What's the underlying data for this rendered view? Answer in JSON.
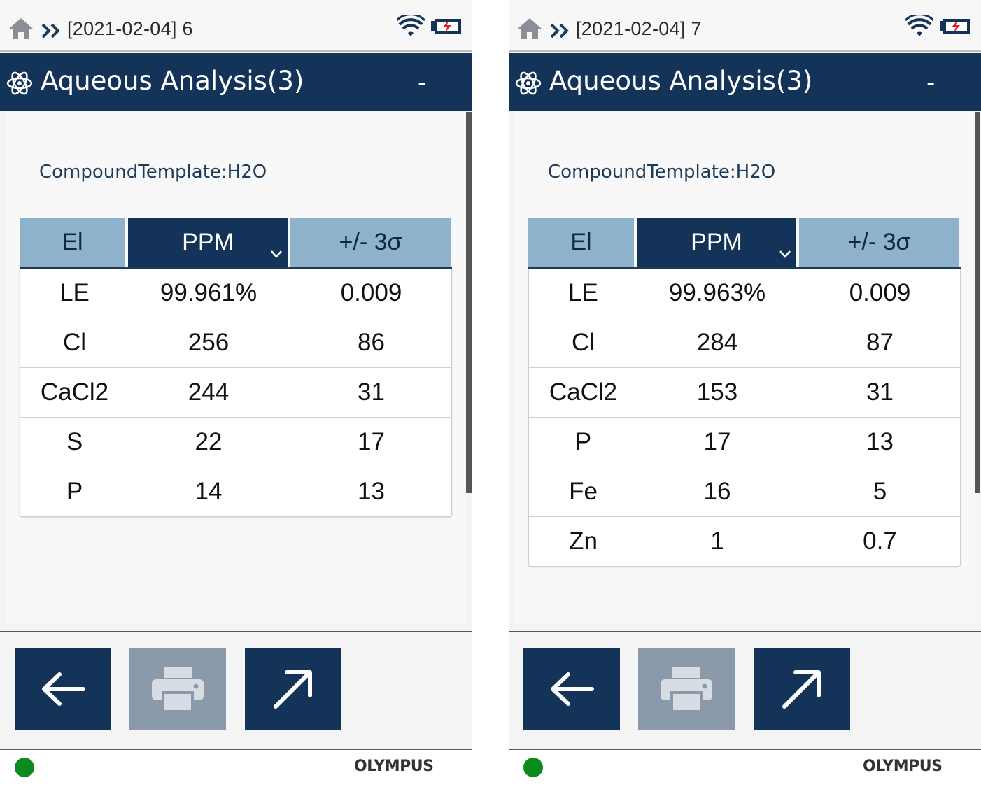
{
  "screens": [
    {
      "status": {
        "title": "[2021-02-04] 6"
      },
      "header": {
        "title": "Aqueous Analysis(3)",
        "minimize": "-"
      },
      "compound_template": "CompoundTemplate:H2O",
      "table": {
        "columns": [
          "El",
          "PPM",
          "+/- 3σ"
        ],
        "rows": [
          {
            "el": "LE",
            "ppm": "99.961%",
            "sigma": "0.009"
          },
          {
            "el": "Cl",
            "ppm": "256",
            "sigma": "86"
          },
          {
            "el": "CaCl2",
            "ppm": "244",
            "sigma": "31"
          },
          {
            "el": "S",
            "ppm": "22",
            "sigma": "17"
          },
          {
            "el": "P",
            "ppm": "14",
            "sigma": "13"
          }
        ]
      },
      "footer": {
        "brand": "OLYMPUS",
        "status_color": "#0b8a1d"
      }
    },
    {
      "status": {
        "title": "[2021-02-04] 7"
      },
      "header": {
        "title": "Aqueous Analysis(3)",
        "minimize": "-"
      },
      "compound_template": "CompoundTemplate:H2O",
      "table": {
        "columns": [
          "El",
          "PPM",
          "+/- 3σ"
        ],
        "rows": [
          {
            "el": "LE",
            "ppm": "99.963%",
            "sigma": "0.009"
          },
          {
            "el": "Cl",
            "ppm": "284",
            "sigma": "87"
          },
          {
            "el": "CaCl2",
            "ppm": "153",
            "sigma": "31"
          },
          {
            "el": "P",
            "ppm": "17",
            "sigma": "13"
          },
          {
            "el": "Fe",
            "ppm": "16",
            "sigma": "5"
          },
          {
            "el": "Zn",
            "ppm": "1",
            "sigma": "0.7"
          }
        ]
      },
      "footer": {
        "brand": "OLYMPUS",
        "status_color": "#0b8a1d"
      }
    }
  ],
  "icons": {
    "home": "home-icon",
    "nav": "double-chevron-icon",
    "wifi": "wifi-icon",
    "battery": "battery-charging-icon",
    "app": "atom-icon",
    "sort": "chevron-down-icon",
    "back": "arrow-left-icon",
    "print": "printer-icon",
    "export": "arrow-up-right-icon"
  },
  "colors": {
    "header": "#133359",
    "header_alt": "#8eb2cc",
    "disabled_button": "#8b9aab"
  }
}
